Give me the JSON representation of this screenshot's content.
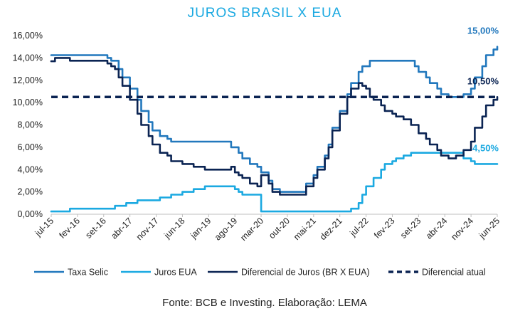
{
  "chart_data": {
    "type": "line",
    "title": "JUROS BRASIL X EUA",
    "source": "Fonte: BCB e Investing. Elaboração: LEMA",
    "xlabel": "",
    "ylabel": "",
    "ylim": [
      0,
      16
    ],
    "yticks": [
      "0,00%",
      "2,00%",
      "4,00%",
      "6,00%",
      "8,00%",
      "10,00%",
      "12,00%",
      "14,00%",
      "16,00%"
    ],
    "xticks": [
      "jul-15",
      "fev-16",
      "set-16",
      "abr-17",
      "nov-17",
      "jun-18",
      "jan-19",
      "ago-19",
      "mar-20",
      "out-20",
      "mai-21",
      "dez-21",
      "jul-22",
      "fev-23",
      "set-23",
      "abr-24",
      "nov-24",
      "jun-25"
    ],
    "x_start": "jul-15",
    "x_end": "jun-25",
    "grid": false,
    "legend_position": "bottom",
    "colors": {
      "selic": "#2278bd",
      "fed": "#1ba9e1",
      "diff": "#0b2453",
      "current": "#0b2453",
      "title": "#1ba9e1"
    },
    "series": [
      {
        "name": "Taxa Selic",
        "key": "selic",
        "step": true,
        "points": [
          [
            "jul-15",
            14.25
          ],
          [
            "out-16",
            14.0
          ],
          [
            "nov-16",
            13.75
          ],
          [
            "jan-17",
            13.0
          ],
          [
            "fev-17",
            12.25
          ],
          [
            "abr-17",
            11.25
          ],
          [
            "jun-17",
            10.25
          ],
          [
            "jul-17",
            9.25
          ],
          [
            "set-17",
            8.25
          ],
          [
            "out-17",
            7.5
          ],
          [
            "dez-17",
            7.0
          ],
          [
            "fev-18",
            6.75
          ],
          [
            "mar-18",
            6.5
          ],
          [
            "jul-19",
            6.0
          ],
          [
            "set-19",
            5.5
          ],
          [
            "out-19",
            5.0
          ],
          [
            "dez-19",
            4.5
          ],
          [
            "fev-20",
            4.25
          ],
          [
            "mar-20",
            3.75
          ],
          [
            "mai-20",
            3.0
          ],
          [
            "jun-20",
            2.25
          ],
          [
            "ago-20",
            2.0
          ],
          [
            "mar-21",
            2.75
          ],
          [
            "mai-21",
            3.5
          ],
          [
            "jun-21",
            4.25
          ],
          [
            "ago-21",
            5.25
          ],
          [
            "set-21",
            6.25
          ],
          [
            "out-21",
            7.75
          ],
          [
            "dez-21",
            9.25
          ],
          [
            "fev-22",
            10.75
          ],
          [
            "mar-22",
            11.75
          ],
          [
            "mai-22",
            12.75
          ],
          [
            "jun-22",
            13.25
          ],
          [
            "ago-22",
            13.75
          ],
          [
            "ago-23",
            13.25
          ],
          [
            "set-23",
            12.75
          ],
          [
            "nov-23",
            12.25
          ],
          [
            "dez-23",
            11.75
          ],
          [
            "fev-24",
            11.25
          ],
          [
            "mar-24",
            10.75
          ],
          [
            "mai-24",
            10.5
          ],
          [
            "set-24",
            10.75
          ],
          [
            "nov-24",
            11.25
          ],
          [
            "dez-24",
            12.25
          ],
          [
            "fev-25",
            13.25
          ],
          [
            "mar-25",
            14.25
          ],
          [
            "mai-25",
            14.75
          ],
          [
            "jun-25",
            15.0
          ]
        ]
      },
      {
        "name": "Juros EUA",
        "key": "fed",
        "step": true,
        "points": [
          [
            "jul-15",
            0.25
          ],
          [
            "dez-15",
            0.5
          ],
          [
            "dez-16",
            0.75
          ],
          [
            "mar-17",
            1.0
          ],
          [
            "jun-17",
            1.25
          ],
          [
            "dez-17",
            1.5
          ],
          [
            "mar-18",
            1.75
          ],
          [
            "jun-18",
            2.0
          ],
          [
            "set-18",
            2.25
          ],
          [
            "dez-18",
            2.5
          ],
          [
            "ago-19",
            2.25
          ],
          [
            "set-19",
            2.0
          ],
          [
            "out-19",
            1.75
          ],
          [
            "mar-20",
            0.25
          ],
          [
            "mar-22",
            0.5
          ],
          [
            "mai-22",
            1.0
          ],
          [
            "jun-22",
            1.75
          ],
          [
            "jul-22",
            2.5
          ],
          [
            "set-22",
            3.25
          ],
          [
            "nov-22",
            4.0
          ],
          [
            "dez-22",
            4.5
          ],
          [
            "fev-23",
            4.75
          ],
          [
            "mar-23",
            5.0
          ],
          [
            "mai-23",
            5.25
          ],
          [
            "jul-23",
            5.5
          ],
          [
            "set-24",
            5.0
          ],
          [
            "nov-24",
            4.75
          ],
          [
            "dez-24",
            4.5
          ],
          [
            "jun-25",
            4.5
          ]
        ]
      },
      {
        "name": "Diferencial de Juros (BR X EUA)",
        "key": "diff",
        "step": true,
        "points": [
          [
            "jul-15",
            13.7
          ],
          [
            "ago-15",
            14.0
          ],
          [
            "dez-15",
            13.75
          ],
          [
            "out-16",
            13.5
          ],
          [
            "nov-16",
            13.25
          ],
          [
            "dez-16",
            13.0
          ],
          [
            "jan-17",
            12.25
          ],
          [
            "fev-17",
            11.5
          ],
          [
            "abr-17",
            10.25
          ],
          [
            "jun-17",
            9.0
          ],
          [
            "jul-17",
            8.0
          ],
          [
            "set-17",
            7.0
          ],
          [
            "out-17",
            6.25
          ],
          [
            "dez-17",
            5.5
          ],
          [
            "fev-18",
            5.25
          ],
          [
            "mar-18",
            4.75
          ],
          [
            "jun-18",
            4.5
          ],
          [
            "set-18",
            4.25
          ],
          [
            "dez-18",
            4.0
          ],
          [
            "jul-19",
            4.25
          ],
          [
            "ago-19",
            3.75
          ],
          [
            "set-19",
            3.5
          ],
          [
            "out-19",
            3.25
          ],
          [
            "dez-19",
            2.75
          ],
          [
            "fev-20",
            2.5
          ],
          [
            "mar-20",
            3.5
          ],
          [
            "mai-20",
            2.75
          ],
          [
            "jun-20",
            2.0
          ],
          [
            "ago-20",
            1.75
          ],
          [
            "mar-21",
            2.5
          ],
          [
            "mai-21",
            3.25
          ],
          [
            "jun-21",
            4.0
          ],
          [
            "ago-21",
            5.0
          ],
          [
            "set-21",
            6.0
          ],
          [
            "out-21",
            7.5
          ],
          [
            "dez-21",
            9.0
          ],
          [
            "fev-22",
            10.5
          ],
          [
            "mar-22",
            11.25
          ],
          [
            "mai-22",
            11.75
          ],
          [
            "jun-22",
            11.5
          ],
          [
            "jul-22",
            11.25
          ],
          [
            "ago-22",
            10.5
          ],
          [
            "set-22",
            10.25
          ],
          [
            "nov-22",
            9.75
          ],
          [
            "dez-22",
            9.25
          ],
          [
            "fev-23",
            9.0
          ],
          [
            "mar-23",
            8.75
          ],
          [
            "mai-23",
            8.5
          ],
          [
            "jul-23",
            8.0
          ],
          [
            "set-23",
            7.25
          ],
          [
            "nov-23",
            6.75
          ],
          [
            "dez-23",
            6.25
          ],
          [
            "fev-24",
            5.75
          ],
          [
            "mar-24",
            5.25
          ],
          [
            "mai-24",
            5.0
          ],
          [
            "jul-24",
            5.25
          ],
          [
            "set-24",
            5.75
          ],
          [
            "nov-24",
            6.5
          ],
          [
            "dez-24",
            7.75
          ],
          [
            "fev-25",
            8.75
          ],
          [
            "mar-25",
            9.75
          ],
          [
            "mai-25",
            10.25
          ],
          [
            "jun-25",
            10.5
          ]
        ]
      },
      {
        "name": "Diferencial atual",
        "key": "current",
        "dashed": true,
        "value": 10.5
      }
    ],
    "end_labels": [
      {
        "key": "selic",
        "text": "15,00%",
        "value": 15.0
      },
      {
        "key": "current",
        "text": "10,50%",
        "value": 10.5
      },
      {
        "key": "fed",
        "text": "4,50%",
        "value": 4.5
      }
    ]
  }
}
